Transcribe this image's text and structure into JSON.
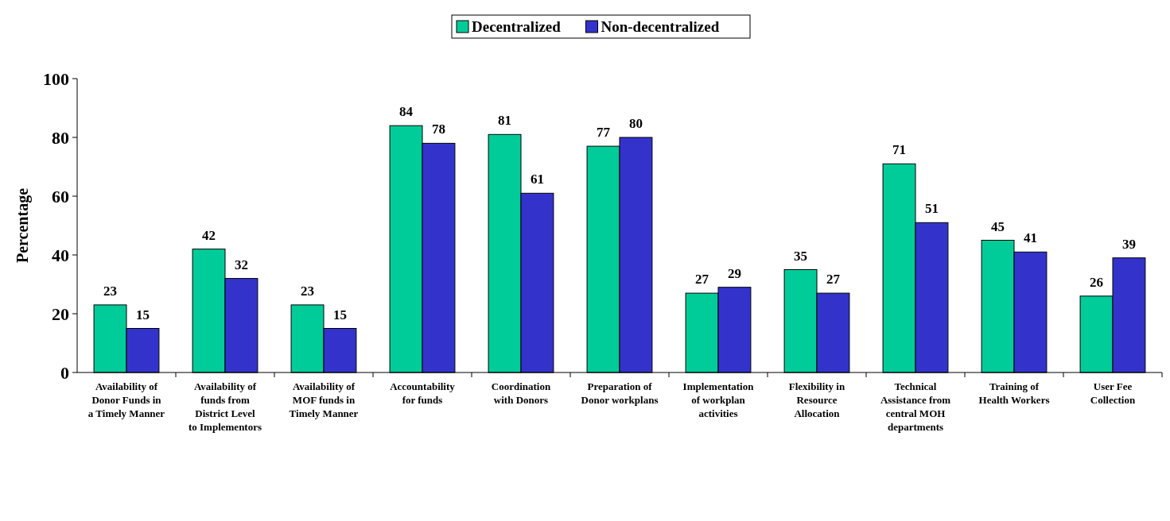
{
  "chart_data": {
    "type": "bar",
    "ylabel": "Percentage",
    "categories": [
      "Availability of Donor Funds in a Timely Manner",
      "Availability of funds from District Level to Implementors",
      "Availability of MOF funds in Timely Manner",
      "Accountability for funds",
      "Coordination with Donors",
      "Preparation of Donor workplans",
      "Implementation of workplan activities",
      "Flexibility in Resource Allocation",
      "Technical Assistance from central MOH departments",
      "Training of Health Workers",
      "User Fee Collection"
    ],
    "series": [
      {
        "name": "Decentralized",
        "color": "#00cc99",
        "values": [
          23,
          42,
          23,
          84,
          81,
          77,
          27,
          35,
          71,
          45,
          26
        ]
      },
      {
        "name": "Non-decentralized",
        "color": "#3333cc",
        "values": [
          15,
          32,
          15,
          78,
          61,
          80,
          29,
          27,
          51,
          41,
          39
        ]
      }
    ],
    "ylim": [
      0,
      100
    ],
    "yticks": [
      0,
      20,
      40,
      60,
      80,
      100
    ],
    "data_labels": true,
    "legend": "top",
    "grid": false
  }
}
